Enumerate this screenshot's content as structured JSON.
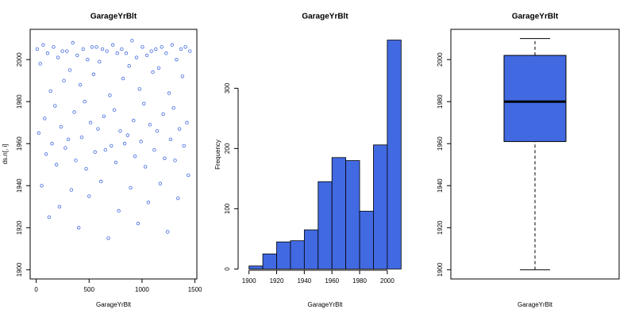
{
  "chart_data": [
    {
      "type": "scatter",
      "title": "GarageYrBlt",
      "xlabel": "GarageYrBlt",
      "ylabel": "ds.n[, i]",
      "color": "#4169e1",
      "x": [
        10,
        24,
        38,
        52,
        66,
        80,
        94,
        108,
        122,
        136,
        150,
        164,
        178,
        192,
        206,
        220,
        234,
        248,
        262,
        276,
        290,
        304,
        318,
        332,
        346,
        360,
        374,
        388,
        402,
        416,
        430,
        444,
        458,
        472,
        486,
        500,
        514,
        528,
        542,
        556,
        570,
        584,
        598,
        612,
        626,
        640,
        654,
        668,
        682,
        696,
        710,
        724,
        738,
        752,
        766,
        780,
        794,
        808,
        822,
        836,
        850,
        864,
        878,
        892,
        906,
        920,
        934,
        948,
        962,
        976,
        990,
        1004,
        1018,
        1032,
        1046,
        1060,
        1074,
        1088,
        1102,
        1116,
        1130,
        1144,
        1158,
        1172,
        1186,
        1200,
        1214,
        1228,
        1242,
        1256,
        1270,
        1284,
        1298,
        1312,
        1326,
        1340,
        1354,
        1368,
        1382,
        1396,
        1410,
        1424,
        1438,
        1452
      ],
      "y": [
        2005,
        1965,
        1998,
        1940,
        2007,
        1972,
        1955,
        2003,
        1925,
        1985,
        1960,
        2006,
        1978,
        1950,
        2001,
        1930,
        1968,
        2004,
        1990,
        1958,
        2004,
        1962,
        1995,
        1938,
        2008,
        1975,
        1952,
        2002,
        1920,
        1988,
        1963,
        2005,
        1980,
        1948,
        2000,
        1935,
        1970,
        2006,
        1993,
        1956,
        2006,
        1967,
        1999,
        1942,
        2005,
        1973,
        1957,
        2004,
        1915,
        1983,
        1959,
        2007,
        1976,
        1951,
        2003,
        1928,
        1966,
        2005,
        1991,
        1960,
        2003,
        1964,
        1997,
        1939,
        2009,
        1971,
        1954,
        2001,
        1922,
        1986,
        1961,
        2006,
        1979,
        1949,
        2002,
        1932,
        1969,
        2004,
        1994,
        1957,
        2005,
        1966,
        1996,
        1941,
        2006,
        1974,
        1953,
        2003,
        1918,
        1984,
        1962,
        2007,
        1977,
        1952,
        2000,
        1934,
        1967,
        2005,
        1992,
        1959,
        2006,
        1970,
        1945,
        2004
      ],
      "xlim": [
        -57,
        1518
      ],
      "ylim": [
        1895.6,
        2014.4
      ],
      "xticks": [
        0,
        500,
        1000,
        1500
      ],
      "yticks": [
        1900,
        1920,
        1940,
        1960,
        1980,
        2000
      ]
    },
    {
      "type": "histogram",
      "title": "GarageYrBlt",
      "xlabel": "GarageYrBlt",
      "ylabel": "Frequency",
      "color": "#4169e1",
      "bins": [
        1900,
        1910,
        1920,
        1930,
        1940,
        1950,
        1960,
        1970,
        1980,
        1990,
        2000,
        2010
      ],
      "values": [
        5,
        25,
        45,
        47,
        65,
        145,
        185,
        180,
        96,
        206,
        380
      ],
      "xlim": [
        1895.6,
        2014.4
      ],
      "ylim": [
        -15.2,
        395.2
      ],
      "xticks": [
        1900,
        1920,
        1940,
        1960,
        1980,
        2000
      ],
      "yticks": [
        0,
        100,
        200,
        300
      ]
    },
    {
      "type": "box",
      "title": "GarageYrBlt",
      "xlabel": "GarageYrBlt",
      "color": "#4169e1",
      "min": 1900,
      "q1": 1961,
      "median": 1980,
      "q3": 2002,
      "max": 2010,
      "ylim": [
        1895.6,
        2014.4
      ],
      "yticks": [
        1900,
        1920,
        1940,
        1960,
        1980,
        2000
      ]
    }
  ]
}
